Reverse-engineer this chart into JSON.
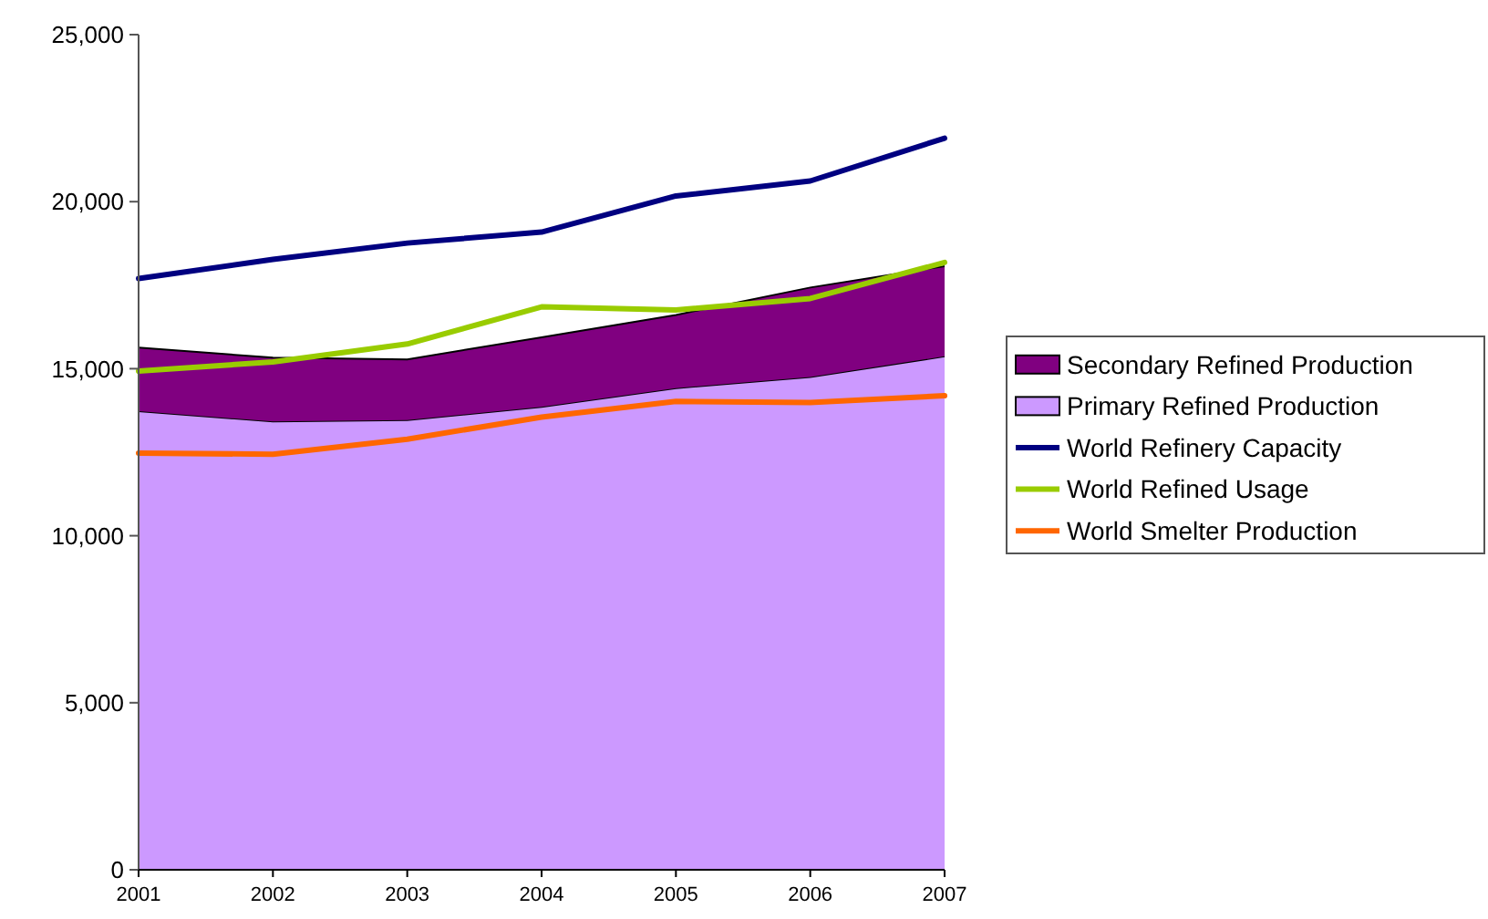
{
  "chart_data": {
    "type": "line",
    "categories": [
      "2001",
      "2002",
      "2003",
      "2004",
      "2005",
      "2006",
      "2007"
    ],
    "series": [
      {
        "name": "Primary Refined Production",
        "type": "area",
        "color": "#cc99ff",
        "values": [
          13730,
          13420,
          13460,
          13860,
          14420,
          14750,
          15370
        ]
      },
      {
        "name": "Secondary Refined Production",
        "type": "area",
        "color": "#800080",
        "values": [
          1900,
          1910,
          1820,
          2080,
          2190,
          2680,
          2700
        ]
      },
      {
        "name": "World Refinery Capacity",
        "color": "#000080",
        "values": [
          17700,
          18270,
          18760,
          19090,
          20170,
          20620,
          21900
        ]
      },
      {
        "name": "World Refined Usage",
        "color": "#99cc00",
        "values": [
          14930,
          15200,
          15740,
          16850,
          16760,
          17100,
          18180
        ]
      },
      {
        "name": "World Smelter Production",
        "color": "#ff6600",
        "values": [
          12470,
          12440,
          12890,
          13550,
          14020,
          13990,
          14190
        ]
      }
    ],
    "stacked": true,
    "ylim": [
      0,
      25000
    ],
    "yticks": [
      0,
      {
        "value": 5000,
        "label": "5,000"
      },
      {
        "value": 10000,
        "label": "10,000"
      },
      {
        "value": 15000,
        "label": "15,000"
      },
      {
        "value": 20000,
        "label": "20,000"
      },
      {
        "value": 25000,
        "label": "25,000"
      }
    ],
    "legend": "right",
    "grid": false,
    "marker": "none",
    "line_style": "solid"
  }
}
